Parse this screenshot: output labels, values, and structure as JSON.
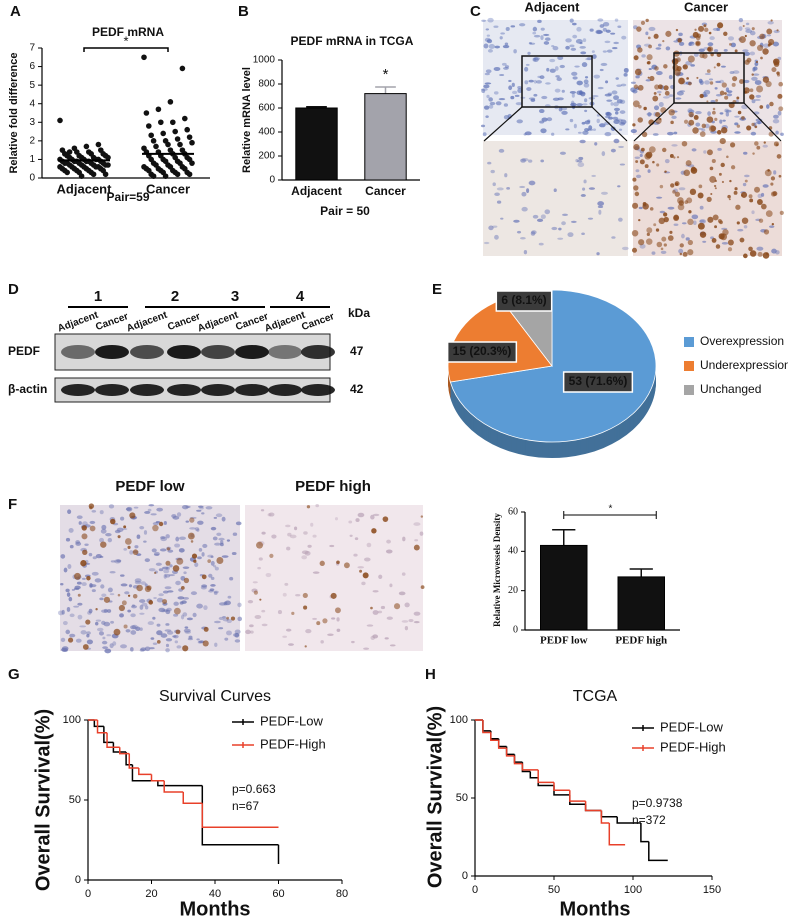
{
  "chart_data": [
    {
      "panel": "A",
      "type": "strip",
      "title": "PEDF mRNA",
      "y_label": "Relative fold difference",
      "categories": [
        "Adjacent",
        "Cancer"
      ],
      "values": [
        [
          3.1,
          1.8,
          1.7,
          1.6,
          1.5,
          1.5,
          1.4,
          1.4,
          1.3,
          1.3,
          1.3,
          1.2,
          1.2,
          1.2,
          1.1,
          1.1,
          1.1,
          1.1,
          1.0,
          1.0,
          1.0,
          1.0,
          1.0,
          0.9,
          0.9,
          0.9,
          0.9,
          0.9,
          0.9,
          0.8,
          0.8,
          0.8,
          0.8,
          0.8,
          0.7,
          0.7,
          0.7,
          0.7,
          0.7,
          0.6,
          0.6,
          0.6,
          0.6,
          0.6,
          0.5,
          0.5,
          0.5,
          0.5,
          0.4,
          0.4,
          0.4,
          0.4,
          0.3,
          0.3,
          0.3,
          0.2,
          0.2,
          0.1,
          1.4
        ],
        [
          6.5,
          5.9,
          4.1,
          3.7,
          3.5,
          3.2,
          3.0,
          3.0,
          2.8,
          2.6,
          2.5,
          2.4,
          2.3,
          2.2,
          2.1,
          2.0,
          2.0,
          1.9,
          1.8,
          1.8,
          1.7,
          1.6,
          1.5,
          1.5,
          1.4,
          1.4,
          1.3,
          1.3,
          1.2,
          1.2,
          1.1,
          1.1,
          1.0,
          1.0,
          1.0,
          0.9,
          0.9,
          0.8,
          0.8,
          0.8,
          0.7,
          0.7,
          0.6,
          0.6,
          0.6,
          0.5,
          0.5,
          0.5,
          0.4,
          0.4,
          0.4,
          0.3,
          0.3,
          0.3,
          0.2,
          0.2,
          0.2,
          0.1,
          0.1
        ]
      ],
      "means": [
        0.95,
        1.3
      ],
      "ylim": [
        0,
        7
      ],
      "yticks": [
        0,
        1,
        2,
        3,
        4,
        5,
        6,
        7
      ],
      "significance": "*",
      "note": "Pair=59"
    },
    {
      "panel": "B",
      "type": "bar",
      "title": "PEDF mRNA in TCGA",
      "y_label": "Relative mRNA level",
      "categories": [
        "Adjacent",
        "Cancer"
      ],
      "values": [
        600,
        720
      ],
      "errors": [
        10,
        55
      ],
      "colors": [
        "#111111",
        "#a3a3ab"
      ],
      "ylim": [
        0,
        1000
      ],
      "yticks": [
        0,
        200,
        400,
        600,
        800,
        1000
      ],
      "significance": "*",
      "note": "Pair = 50"
    },
    {
      "panel": "E",
      "type": "pie",
      "categories": [
        "Overexpression",
        "Underexpression",
        "Unchanged"
      ],
      "values": [
        53,
        15,
        6
      ],
      "value_labels": [
        "53 (71.6%)",
        "15 (20.3%)",
        "6 (8.1%)"
      ],
      "colors": [
        "#5b9bd5",
        "#ed7d31",
        "#a5a5a5"
      ],
      "legend": "right"
    },
    {
      "panel": "F",
      "type": "bar",
      "y_label": "Relative Microvessels Density",
      "categories": [
        "PEDF low",
        "PEDF high"
      ],
      "values": [
        43,
        27
      ],
      "errors": [
        8,
        4
      ],
      "colors": [
        "#111111",
        "#111111"
      ],
      "ylim": [
        0,
        60
      ],
      "yticks": [
        0,
        20,
        40,
        60
      ],
      "significance": "*"
    },
    {
      "panel": "G",
      "type": "step",
      "title": "Survival Curves",
      "x_label": "Months",
      "y_label": "Overall Survival(%)",
      "series": [
        {
          "name": "PEDF-Low",
          "color": "#000000",
          "x": [
            0,
            2,
            5,
            8,
            12,
            14,
            22,
            36,
            60
          ],
          "values": [
            100,
            96,
            86,
            80,
            72,
            62,
            59,
            22,
            10
          ]
        },
        {
          "name": "PEDF-High",
          "color": "#e8402a",
          "x": [
            0,
            3,
            6,
            10,
            13,
            16,
            20,
            24,
            30,
            36,
            60
          ],
          "values": [
            100,
            92,
            83,
            79,
            70,
            66,
            62,
            55,
            48,
            33,
            33
          ]
        }
      ],
      "xlim": [
        0,
        80
      ],
      "xticks": [
        0,
        20,
        40,
        60,
        80
      ],
      "ylim": [
        0,
        100
      ],
      "yticks": [
        0,
        50,
        100
      ],
      "annotations": [
        "p=0.663",
        "n=67"
      ],
      "legend": "upper right"
    },
    {
      "panel": "H",
      "type": "step",
      "title": "TCGA",
      "x_label": "Months",
      "y_label": "Overall Survival(%)",
      "series": [
        {
          "name": "PEDF-Low",
          "color": "#000000",
          "x": [
            0,
            5,
            10,
            15,
            20,
            25,
            30,
            35,
            40,
            50,
            60,
            70,
            80,
            90,
            100,
            105,
            110,
            122
          ],
          "values": [
            100,
            93,
            88,
            83,
            78,
            73,
            67,
            63,
            58,
            52,
            46,
            42,
            38,
            34,
            34,
            22,
            10,
            10
          ]
        },
        {
          "name": "PEDF-High",
          "color": "#e8402a",
          "x": [
            0,
            5,
            10,
            15,
            20,
            25,
            30,
            40,
            50,
            60,
            70,
            80,
            85,
            95
          ],
          "values": [
            100,
            92,
            87,
            82,
            77,
            72,
            68,
            60,
            55,
            48,
            42,
            34,
            20,
            20
          ]
        }
      ],
      "xlim": [
        0,
        150
      ],
      "xticks": [
        0,
        50,
        100,
        150
      ],
      "ylim": [
        0,
        100
      ],
      "yticks": [
        0,
        50,
        100
      ],
      "annotations": [
        "p=0.9738",
        "n=372"
      ],
      "legend": "upper right"
    }
  ],
  "panel_c": {
    "panel": "C",
    "labels": [
      "Adjacent",
      "Cancer"
    ]
  },
  "panel_d": {
    "panel": "D",
    "groups": [
      "1",
      "2",
      "3",
      "4"
    ],
    "lanes": [
      "Adjacent",
      "Cancer",
      "Adjacent",
      "Cancer",
      "Adjacent",
      "Cancer",
      "Adjacent",
      "Cancer"
    ],
    "unit": "kDa",
    "rows": [
      {
        "label": "PEDF",
        "size": 47
      },
      {
        "label": "β-actin",
        "size": 42
      }
    ]
  },
  "panel_f_images": {
    "labels": [
      "PEDF low",
      "PEDF high"
    ]
  }
}
